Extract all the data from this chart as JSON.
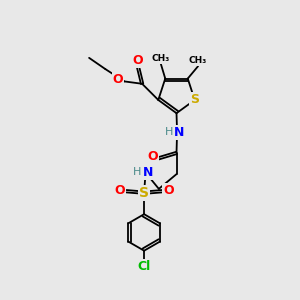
{
  "background_color": "#e8e8e8",
  "atom_colors": {
    "O": "#ff0000",
    "N": "#0000ff",
    "S_thiophene": "#ccaa00",
    "S_sulfonyl": "#ccaa00",
    "Cl": "#00bb00",
    "C": "#000000",
    "H": "#4a8a8a"
  },
  "figsize": [
    3.0,
    3.0
  ],
  "dpi": 100,
  "xlim": [
    0,
    10
  ],
  "ylim": [
    0,
    10
  ]
}
